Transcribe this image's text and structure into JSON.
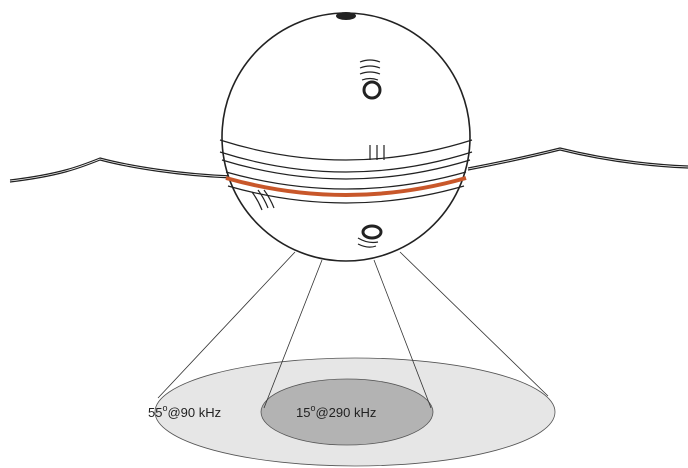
{
  "beams": [
    {
      "angle": "55",
      "degree": "o",
      "frequency": "@90 kHz"
    },
    {
      "angle": "15",
      "degree": "o",
      "frequency": "@290 kHz"
    }
  ]
}
